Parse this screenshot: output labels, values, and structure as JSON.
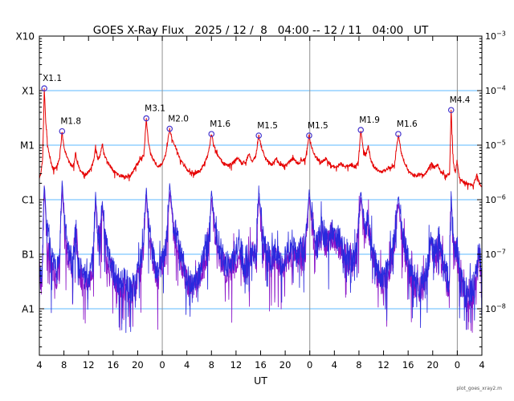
{
  "chart": {
    "title": "GOES X-Ray Flux   2025 / 12 /  8   04:00 -- 12 / 11   04:00   UT",
    "xlabel": "UT",
    "watermark": "plot_goes_xray2.m"
  },
  "chart_data": {
    "type": "line",
    "title": "GOES X-Ray Flux   2025 / 12 /  8   04:00 -- 12 / 11   04:00   UT",
    "xlabel": "UT",
    "x_unit": "hours since 2025-12-08 00:00 UT",
    "x_range": [
      4,
      76
    ],
    "y_scale": "log",
    "y_unit": "W m^-2",
    "y_top_flux": 0.001,
    "grid": "flux-class horizontal lines, day-boundary vertical lines",
    "x_ticks": [
      {
        "t": 4,
        "label": "4"
      },
      {
        "t": 8,
        "label": "8"
      },
      {
        "t": 12,
        "label": "12"
      },
      {
        "t": 16,
        "label": "16"
      },
      {
        "t": 20,
        "label": "20"
      },
      {
        "t": 24,
        "label": "0"
      },
      {
        "t": 28,
        "label": "4"
      },
      {
        "t": 32,
        "label": "8"
      },
      {
        "t": 36,
        "label": "12"
      },
      {
        "t": 40,
        "label": "16"
      },
      {
        "t": 44,
        "label": "20"
      },
      {
        "t": 48,
        "label": "0"
      },
      {
        "t": 52,
        "label": "4"
      },
      {
        "t": 56,
        "label": "8"
      },
      {
        "t": 60,
        "label": "12"
      },
      {
        "t": 64,
        "label": "16"
      },
      {
        "t": 68,
        "label": "20"
      },
      {
        "t": 72,
        "label": "0"
      },
      {
        "t": 76,
        "label": "4"
      }
    ],
    "left_axis_labels": [
      {
        "label": "X10",
        "flux": 0.001
      },
      {
        "label": "X1",
        "flux": 0.0001
      },
      {
        "label": "M1",
        "flux": 1e-05
      },
      {
        "label": "C1",
        "flux": 1e-06
      },
      {
        "label": "B1",
        "flux": 1e-07
      },
      {
        "label": "A1",
        "flux": 1e-08
      }
    ],
    "right_axis_exponents": [
      -3,
      -4,
      -5,
      -6,
      -7,
      -8
    ],
    "hlines_flux": [
      0.0001,
      1e-05,
      1e-06,
      1e-07,
      1e-08
    ],
    "vlines_hours": [
      24,
      48,
      72
    ],
    "colors": {
      "long_channel": "#e60000",
      "short_channel": "#2929dd",
      "short_secondary": "#8a14c8",
      "gridline_cyan": "#5cb8ff",
      "day_line_gray": "#909090",
      "marker": "#4433cc"
    },
    "flares": [
      {
        "label": "X1.1",
        "t": 4.8,
        "flux": 0.00011
      },
      {
        "label": "M1.8",
        "t": 7.7,
        "flux": 1.8e-05
      },
      {
        "label": "M3.1",
        "t": 21.4,
        "flux": 3.1e-05
      },
      {
        "label": "M2.0",
        "t": 25.2,
        "flux": 2e-05
      },
      {
        "label": "M1.6",
        "t": 32.0,
        "flux": 1.6e-05
      },
      {
        "label": "M1.5",
        "t": 39.7,
        "flux": 1.5e-05
      },
      {
        "label": "M1.5",
        "t": 47.9,
        "flux": 1.5e-05
      },
      {
        "label": "M1.9",
        "t": 56.3,
        "flux": 1.9e-05
      },
      {
        "label": "M1.6",
        "t": 62.4,
        "flux": 1.6e-05
      },
      {
        "label": "M4.4",
        "t": 71.0,
        "flux": 4.4e-05
      }
    ],
    "series": [
      {
        "name": "xray-long-0.1-0.8nm",
        "color": "#e60000",
        "seed": 3,
        "noise_amp": 0.03,
        "calm_above_log": -4.6,
        "keypoints": [
          [
            4.0,
            2.6e-06
          ],
          [
            4.3,
            3.2e-06
          ],
          [
            4.55,
            6e-06
          ],
          [
            4.8,
            0.00011
          ],
          [
            5.05,
            2.5e-05
          ],
          [
            5.35,
            1e-05
          ],
          [
            5.8,
            5e-06
          ],
          [
            6.3,
            3.6e-06
          ],
          [
            6.9,
            4.2e-06
          ],
          [
            7.3,
            6e-06
          ],
          [
            7.7,
            1.8e-05
          ],
          [
            8.0,
            9e-06
          ],
          [
            8.5,
            6e-06
          ],
          [
            9.0,
            4.5e-06
          ],
          [
            9.6,
            4e-06
          ],
          [
            9.9,
            7.5e-06
          ],
          [
            10.2,
            4.5e-06
          ],
          [
            10.8,
            3.2e-06
          ],
          [
            11.5,
            2.9e-06
          ],
          [
            12.2,
            3.4e-06
          ],
          [
            12.8,
            5e-06
          ],
          [
            13.15,
            9.5e-06
          ],
          [
            13.5,
            5.5e-06
          ],
          [
            13.9,
            6.5e-06
          ],
          [
            14.25,
            1.05e-05
          ],
          [
            14.7,
            6e-06
          ],
          [
            15.3,
            4.5e-06
          ],
          [
            16.0,
            3.4e-06
          ],
          [
            17.0,
            2.8e-06
          ],
          [
            18.0,
            2.6e-06
          ],
          [
            18.8,
            2.7e-06
          ],
          [
            19.4,
            3.6e-06
          ],
          [
            20.0,
            4.5e-06
          ],
          [
            20.6,
            6e-06
          ],
          [
            21.0,
            6.5e-06
          ],
          [
            21.4,
            3.1e-05
          ],
          [
            21.75,
            1.1e-05
          ],
          [
            22.1,
            7e-06
          ],
          [
            22.7,
            5e-06
          ],
          [
            23.4,
            4e-06
          ],
          [
            24.0,
            4.5e-06
          ],
          [
            24.6,
            7e-06
          ],
          [
            25.2,
            2e-05
          ],
          [
            25.7,
            1.2e-05
          ],
          [
            26.2,
            9e-06
          ],
          [
            26.8,
            6e-06
          ],
          [
            27.5,
            4.2e-06
          ],
          [
            28.3,
            3.3e-06
          ],
          [
            29.2,
            3e-06
          ],
          [
            30.2,
            3.4e-06
          ],
          [
            31.0,
            5e-06
          ],
          [
            31.5,
            7e-06
          ],
          [
            32.0,
            1.6e-05
          ],
          [
            32.5,
            9e-06
          ],
          [
            33.2,
            6e-06
          ],
          [
            34.0,
            4.6e-06
          ],
          [
            34.8,
            4.2e-06
          ],
          [
            35.6,
            4.8e-06
          ],
          [
            36.3,
            6e-06
          ],
          [
            36.8,
            4.6e-06
          ],
          [
            37.6,
            5e-06
          ],
          [
            38.1,
            7e-06
          ],
          [
            38.6,
            5e-06
          ],
          [
            39.2,
            6e-06
          ],
          [
            39.7,
            1.5e-05
          ],
          [
            40.2,
            8.5e-06
          ],
          [
            40.9,
            5.5e-06
          ],
          [
            41.8,
            4.4e-06
          ],
          [
            42.5,
            5.5e-06
          ],
          [
            43.0,
            4.6e-06
          ],
          [
            43.8,
            4.2e-06
          ],
          [
            44.6,
            4.8e-06
          ],
          [
            45.3,
            5.8e-06
          ],
          [
            46.0,
            4.6e-06
          ],
          [
            46.7,
            5.2e-06
          ],
          [
            47.3,
            5.6e-06
          ],
          [
            47.9,
            1.5e-05
          ],
          [
            48.4,
            8e-06
          ],
          [
            49.0,
            6e-06
          ],
          [
            49.8,
            4.8e-06
          ],
          [
            50.6,
            5.6e-06
          ],
          [
            51.4,
            4.4e-06
          ],
          [
            52.2,
            3.8e-06
          ],
          [
            53.0,
            4.6e-06
          ],
          [
            53.8,
            4e-06
          ],
          [
            54.6,
            4.4e-06
          ],
          [
            55.4,
            4e-06
          ],
          [
            55.9,
            5e-06
          ],
          [
            56.3,
            1.9e-05
          ],
          [
            56.75,
            8e-06
          ],
          [
            57.1,
            6.5e-06
          ],
          [
            57.5,
            9.5e-06
          ],
          [
            57.9,
            5.5e-06
          ],
          [
            58.5,
            4e-06
          ],
          [
            59.3,
            3.2e-06
          ],
          [
            60.2,
            3.4e-06
          ],
          [
            61.0,
            3.8e-06
          ],
          [
            61.8,
            4.4e-06
          ],
          [
            62.4,
            1.6e-05
          ],
          [
            62.9,
            7e-06
          ],
          [
            63.6,
            4.2e-06
          ],
          [
            64.4,
            3e-06
          ],
          [
            65.2,
            2.7e-06
          ],
          [
            66.0,
            3e-06
          ],
          [
            66.6,
            2.8e-06
          ],
          [
            67.2,
            3.6e-06
          ],
          [
            67.8,
            4.6e-06
          ],
          [
            68.3,
            3.8e-06
          ],
          [
            68.8,
            4.4e-06
          ],
          [
            69.4,
            3.2e-06
          ],
          [
            70.2,
            2.7e-06
          ],
          [
            70.75,
            3e-06
          ],
          [
            71.0,
            4.4e-05
          ],
          [
            71.35,
            5e-06
          ],
          [
            71.7,
            3.2e-06
          ],
          [
            71.95,
            5e-06
          ],
          [
            72.3,
            2.6e-06
          ],
          [
            73.0,
            2.1e-06
          ],
          [
            73.8,
            1.9e-06
          ],
          [
            74.6,
            1.8e-06
          ],
          [
            75.2,
            2.9e-06
          ],
          [
            75.6,
            2e-06
          ],
          [
            76.0,
            1.7e-06
          ]
        ]
      },
      {
        "name": "xray-short-0.05-0.4nm",
        "color": "#2929dd",
        "seed": 7,
        "noise_amp": 0.26,
        "calm_above_log": -6.3,
        "keypoints": [
          [
            4.0,
            6e-08
          ],
          [
            4.4,
            3.5e-08
          ],
          [
            4.8,
            2.2e-06
          ],
          [
            5.2,
            3e-07
          ],
          [
            5.7,
            1.2e-07
          ],
          [
            6.2,
            6e-08
          ],
          [
            6.8,
            5e-08
          ],
          [
            7.3,
            9e-08
          ],
          [
            7.7,
            2.2e-06
          ],
          [
            8.2,
            2.5e-07
          ],
          [
            8.8,
            1e-07
          ],
          [
            9.4,
            7e-08
          ],
          [
            9.9,
            3e-07
          ],
          [
            10.4,
            7e-08
          ],
          [
            11.2,
            4e-08
          ],
          [
            12.0,
            3.5e-08
          ],
          [
            12.7,
            8e-08
          ],
          [
            13.15,
            1.2e-06
          ],
          [
            13.6,
            2e-07
          ],
          [
            14.0,
            3e-07
          ],
          [
            14.25,
            9e-07
          ],
          [
            14.8,
            1.5e-07
          ],
          [
            15.5,
            7e-08
          ],
          [
            16.3,
            4e-08
          ],
          [
            17.2,
            2.8e-08
          ],
          [
            18.0,
            3.2e-08
          ],
          [
            18.9,
            2.2e-08
          ],
          [
            19.6,
            3e-08
          ],
          [
            20.3,
            6e-08
          ],
          [
            20.9,
            1.6e-07
          ],
          [
            21.4,
            1.6e-06
          ],
          [
            21.9,
            2.5e-07
          ],
          [
            22.5,
            9e-08
          ],
          [
            23.3,
            4.5e-08
          ],
          [
            24.1,
            9e-08
          ],
          [
            24.7,
            1.6e-07
          ],
          [
            25.2,
            1.9e-06
          ],
          [
            25.8,
            4e-07
          ],
          [
            26.4,
            2.2e-07
          ],
          [
            27.2,
            8e-08
          ],
          [
            28.0,
            4e-08
          ],
          [
            29.0,
            3e-08
          ],
          [
            30.0,
            4.5e-08
          ],
          [
            31.0,
            1.1e-07
          ],
          [
            31.6,
            1.8e-07
          ],
          [
            32.0,
            1.5e-06
          ],
          [
            32.6,
            3e-07
          ],
          [
            33.4,
            1.2e-07
          ],
          [
            34.2,
            7e-08
          ],
          [
            35.0,
            6e-08
          ],
          [
            35.8,
            9e-08
          ],
          [
            36.5,
            1.6e-07
          ],
          [
            37.2,
            7e-08
          ],
          [
            38.0,
            9e-08
          ],
          [
            38.8,
            1.3e-07
          ],
          [
            39.3,
            1e-07
          ],
          [
            39.7,
            1.6e-06
          ],
          [
            40.3,
            2.2e-07
          ],
          [
            41.0,
            1.1e-07
          ],
          [
            41.8,
            8e-08
          ],
          [
            42.5,
            1.3e-07
          ],
          [
            43.3,
            7e-08
          ],
          [
            44.1,
            9e-08
          ],
          [
            45.0,
            1.4e-07
          ],
          [
            45.8,
            1e-07
          ],
          [
            46.5,
            1.2e-07
          ],
          [
            47.2,
            1e-07
          ],
          [
            47.9,
            1.5e-06
          ],
          [
            48.5,
            2.8e-07
          ],
          [
            49.2,
            1.3e-07
          ],
          [
            50.0,
            3e-07
          ],
          [
            50.8,
            1.8e-07
          ],
          [
            51.6,
            3.2e-07
          ],
          [
            52.4,
            2.2e-07
          ],
          [
            53.2,
            1.6e-07
          ],
          [
            54.0,
            1e-07
          ],
          [
            54.8,
            8e-08
          ],
          [
            55.6,
            1.1e-07
          ],
          [
            56.3,
            1.5e-06
          ],
          [
            56.9,
            2.8e-07
          ],
          [
            57.5,
            4.5e-07
          ],
          [
            58.2,
            1.2e-07
          ],
          [
            59.0,
            5e-08
          ],
          [
            59.9,
            3.5e-08
          ],
          [
            60.8,
            5.5e-08
          ],
          [
            61.6,
            1.3e-07
          ],
          [
            62.4,
            1.2e-06
          ],
          [
            63.1,
            2.2e-07
          ],
          [
            63.9,
            9e-08
          ],
          [
            64.8,
            4e-08
          ],
          [
            65.7,
            2.8e-08
          ],
          [
            66.5,
            3.5e-08
          ],
          [
            67.1,
            6e-08
          ],
          [
            67.7,
            1.6e-07
          ],
          [
            68.3,
            1e-07
          ],
          [
            69.0,
            1.9e-07
          ],
          [
            69.7,
            7e-08
          ],
          [
            70.3,
            4e-08
          ],
          [
            70.7,
            2.5e-08
          ],
          [
            71.0,
            1.4e-06
          ],
          [
            71.4,
            1.2e-07
          ],
          [
            71.9,
            1.6e-07
          ],
          [
            72.5,
            4e-08
          ],
          [
            73.2,
            2.2e-08
          ],
          [
            74.0,
            2e-08
          ],
          [
            74.8,
            2.6e-08
          ],
          [
            75.6,
            1.3e-07
          ],
          [
            76.0,
            2.2e-08
          ]
        ]
      },
      {
        "name": "xray-short-secondary",
        "color": "#8a14c8",
        "seed": 19,
        "noise_amp": 0.26,
        "calm_above_log": -6.3,
        "derived_from": "xray-short-0.05-0.4nm",
        "log_offset": -0.12,
        "keypoints": []
      }
    ]
  }
}
